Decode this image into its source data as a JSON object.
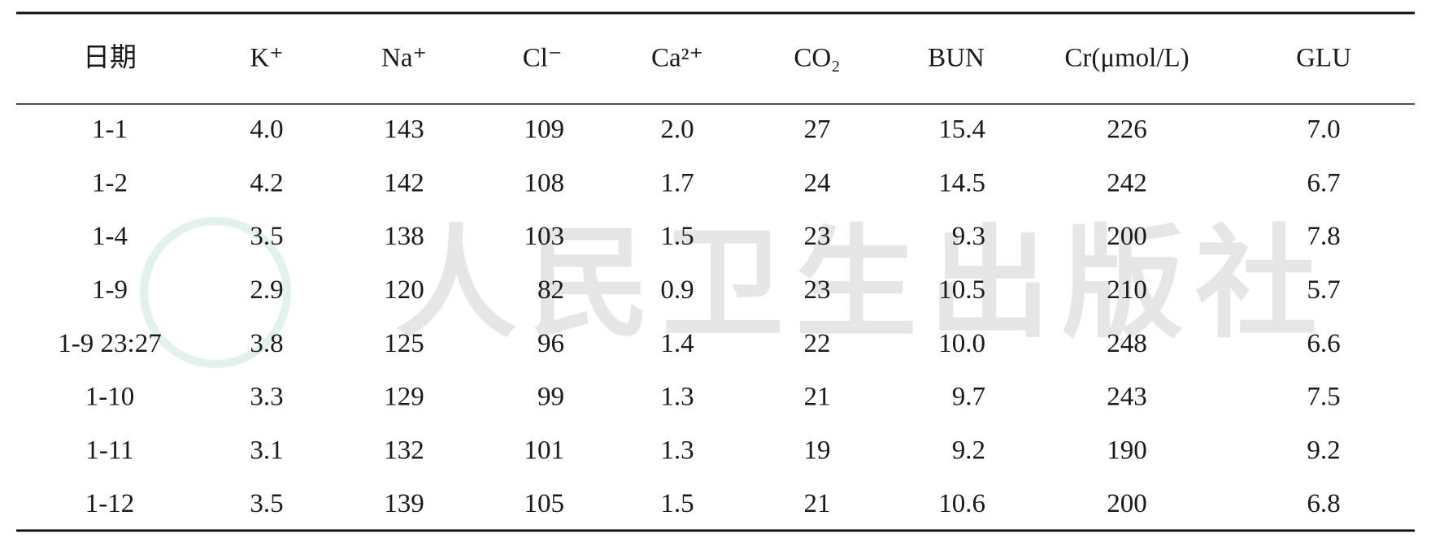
{
  "watermark": "人民卫生出版社",
  "table": {
    "header": [
      "日期",
      "K⁺",
      "Na⁺",
      "Cl⁻",
      "Ca²⁺",
      "CO₂",
      "BUN",
      "Cr(μmol/L)",
      "GLU"
    ],
    "rows": [
      [
        "1-1",
        "4.0",
        "143",
        "109",
        "2.0",
        "27",
        "15.4",
        "226",
        "7.0"
      ],
      [
        "1-2",
        "4.2",
        "142",
        "108",
        "1.7",
        "24",
        "14.5",
        "242",
        "6.7"
      ],
      [
        "1-4",
        "3.5",
        "138",
        "103",
        "1.5",
        "23",
        "9.3",
        "200",
        "7.8"
      ],
      [
        "1-9",
        "2.9",
        "120",
        "82",
        "0.9",
        "23",
        "10.5",
        "210",
        "5.7"
      ],
      [
        "1-9 23:27",
        "3.8",
        "125",
        "96",
        "1.4",
        "22",
        "10.0",
        "248",
        "6.6"
      ],
      [
        "1-10",
        "3.3",
        "129",
        "99",
        "1.3",
        "21",
        "9.7",
        "243",
        "7.5"
      ],
      [
        "1-11",
        "3.1",
        "132",
        "101",
        "1.3",
        "19",
        "9.2",
        "190",
        "9.2"
      ],
      [
        "1-12",
        "3.5",
        "139",
        "105",
        "1.5",
        "21",
        "10.6",
        "200",
        "6.8"
      ]
    ]
  }
}
